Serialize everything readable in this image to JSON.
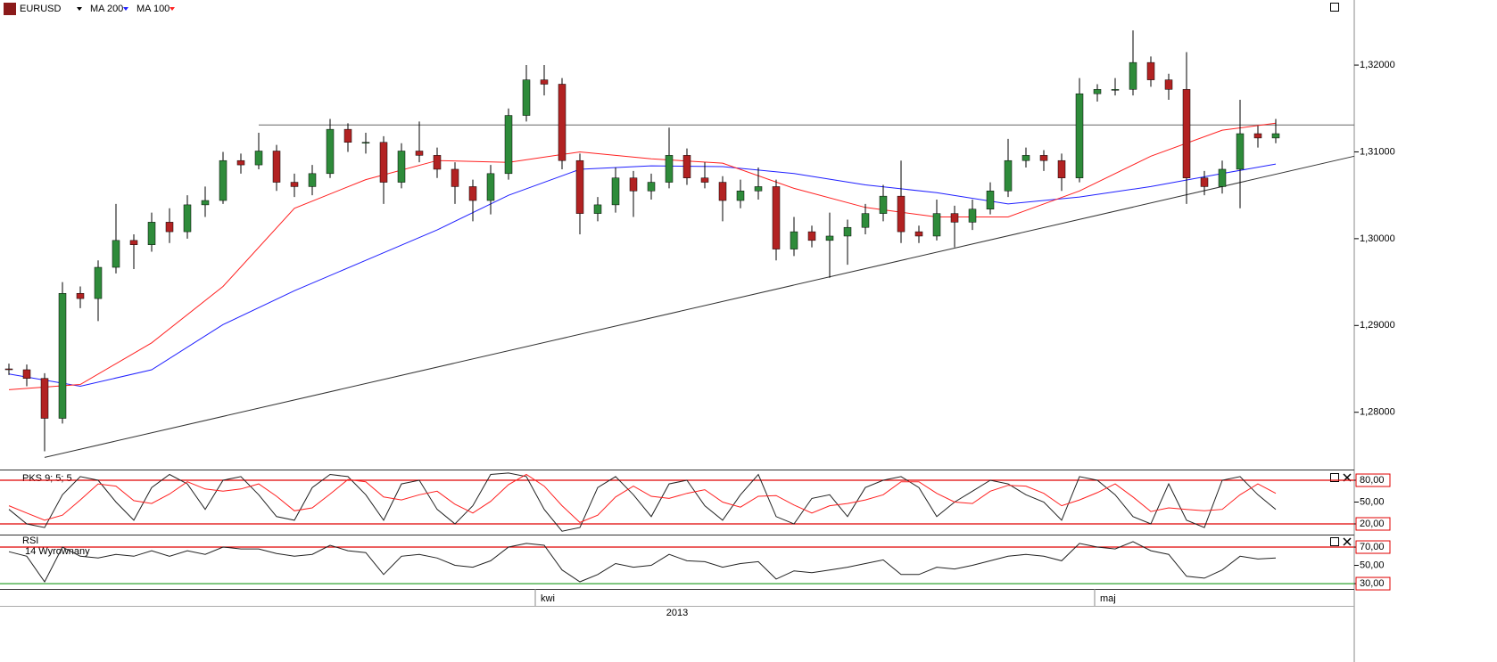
{
  "chart_data": [
    {
      "type": "candlestick",
      "symbol": "EURUSD",
      "up_color": "#2e8b3a",
      "down_color": "#b22222",
      "wick_color": "#000000",
      "xlim": [
        -0.5,
        75.4
      ],
      "xticks": [
        {
          "value": 29.5,
          "label": "kwi"
        },
        {
          "value": 60.85,
          "label": "maj"
        }
      ],
      "year_label": "2013",
      "ylim": [
        1.2734,
        1.3275
      ],
      "yticks": [
        {
          "value": 1.28,
          "label": "1,28000"
        },
        {
          "value": 1.29,
          "label": "1,29000"
        },
        {
          "value": 1.3,
          "label": "1,30000"
        },
        {
          "value": 1.31,
          "label": "1,31000"
        },
        {
          "value": 1.32,
          "label": "1,32000"
        }
      ],
      "candles": [
        [
          1.285,
          1.2856,
          1.2843,
          1.2849
        ],
        [
          1.2849,
          1.2855,
          1.283,
          1.2839
        ],
        [
          1.2839,
          1.2845,
          1.2755,
          1.2793
        ],
        [
          1.2793,
          1.295,
          1.2787,
          1.2937
        ],
        [
          1.2937,
          1.2945,
          1.292,
          1.2931
        ],
        [
          1.2931,
          1.2975,
          1.2905,
          1.2967
        ],
        [
          1.2967,
          1.304,
          1.296,
          1.2998
        ],
        [
          1.2998,
          1.3005,
          1.2965,
          1.2993
        ],
        [
          1.2993,
          1.303,
          1.2985,
          1.3019
        ],
        [
          1.3019,
          1.3035,
          1.2995,
          1.3008
        ],
        [
          1.3008,
          1.305,
          1.3,
          1.3039
        ],
        [
          1.3039,
          1.306,
          1.3025,
          1.3044
        ],
        [
          1.3044,
          1.31,
          1.304,
          1.309
        ],
        [
          1.309,
          1.3098,
          1.3075,
          1.3085
        ],
        [
          1.3085,
          1.3122,
          1.308,
          1.3101
        ],
        [
          1.3101,
          1.3108,
          1.3055,
          1.3065
        ],
        [
          1.3065,
          1.3075,
          1.3048,
          1.306
        ],
        [
          1.306,
          1.3085,
          1.305,
          1.3075
        ],
        [
          1.3075,
          1.3138,
          1.307,
          1.3126
        ],
        [
          1.3126,
          1.3133,
          1.31,
          1.3111
        ],
        [
          1.3111,
          1.3122,
          1.3098,
          1.3111
        ],
        [
          1.3111,
          1.3118,
          1.304,
          1.3065
        ],
        [
          1.3065,
          1.311,
          1.3058,
          1.3101
        ],
        [
          1.3101,
          1.3135,
          1.3088,
          1.3096
        ],
        [
          1.3096,
          1.3105,
          1.307,
          1.308
        ],
        [
          1.308,
          1.3088,
          1.304,
          1.306
        ],
        [
          1.306,
          1.3068,
          1.302,
          1.3044
        ],
        [
          1.3044,
          1.3085,
          1.3028,
          1.3075
        ],
        [
          1.3075,
          1.315,
          1.3068,
          1.3142
        ],
        [
          1.3142,
          1.32,
          1.3135,
          1.3183
        ],
        [
          1.3183,
          1.32,
          1.3165,
          1.3178
        ],
        [
          1.3178,
          1.3185,
          1.308,
          1.309
        ],
        [
          1.309,
          1.3098,
          1.3005,
          1.3029
        ],
        [
          1.3029,
          1.3048,
          1.302,
          1.3039
        ],
        [
          1.3039,
          1.3082,
          1.303,
          1.307
        ],
        [
          1.307,
          1.3078,
          1.3025,
          1.3055
        ],
        [
          1.3055,
          1.3075,
          1.3045,
          1.3065
        ],
        [
          1.3065,
          1.3128,
          1.3058,
          1.3096
        ],
        [
          1.3096,
          1.3104,
          1.3062,
          1.307
        ],
        [
          1.307,
          1.3088,
          1.3058,
          1.3065
        ],
        [
          1.3065,
          1.3072,
          1.302,
          1.3044
        ],
        [
          1.3044,
          1.3068,
          1.3035,
          1.3055
        ],
        [
          1.3055,
          1.3082,
          1.3045,
          1.306
        ],
        [
          1.306,
          1.3068,
          1.2975,
          1.2988
        ],
        [
          1.2988,
          1.3025,
          1.298,
          1.3008
        ],
        [
          1.3008,
          1.3015,
          1.299,
          1.2998
        ],
        [
          1.2998,
          1.303,
          1.2955,
          1.3003
        ],
        [
          1.3003,
          1.3022,
          1.297,
          1.3013
        ],
        [
          1.3013,
          1.304,
          1.3005,
          1.3029
        ],
        [
          1.3029,
          1.3062,
          1.302,
          1.3049
        ],
        [
          1.3049,
          1.309,
          1.2995,
          1.3008
        ],
        [
          1.3008,
          1.3015,
          1.2995,
          1.3003
        ],
        [
          1.3003,
          1.3045,
          1.2998,
          1.3029
        ],
        [
          1.3029,
          1.3038,
          1.299,
          1.3019
        ],
        [
          1.3019,
          1.3045,
          1.301,
          1.3034
        ],
        [
          1.3034,
          1.3065,
          1.3028,
          1.3055
        ],
        [
          1.3055,
          1.3115,
          1.3048,
          1.309
        ],
        [
          1.309,
          1.3105,
          1.3082,
          1.3096
        ],
        [
          1.3096,
          1.3102,
          1.3078,
          1.309
        ],
        [
          1.309,
          1.3098,
          1.3055,
          1.307
        ],
        [
          1.307,
          1.3185,
          1.3065,
          1.3167
        ],
        [
          1.3167,
          1.3178,
          1.3158,
          1.3172
        ],
        [
          1.3172,
          1.3185,
          1.3165,
          1.3172
        ],
        [
          1.3172,
          1.324,
          1.3165,
          1.3203
        ],
        [
          1.3203,
          1.321,
          1.3175,
          1.3183
        ],
        [
          1.3183,
          1.319,
          1.316,
          1.3172
        ],
        [
          1.3172,
          1.3215,
          1.304,
          1.307
        ],
        [
          1.307,
          1.3078,
          1.305,
          1.306
        ],
        [
          1.306,
          1.309,
          1.3052,
          1.308
        ],
        [
          1.308,
          1.316,
          1.3035,
          1.3121
        ],
        [
          1.3121,
          1.313,
          1.3105,
          1.3116
        ],
        [
          1.3116,
          1.3138,
          1.311,
          1.3121
        ]
      ],
      "series": [
        {
          "name": "MA 200",
          "color": "#1f1fff",
          "x": [
            0,
            4,
            8,
            12,
            16,
            20,
            24,
            28,
            32,
            36,
            40,
            44,
            48,
            52,
            56,
            60,
            64,
            68,
            71
          ],
          "values": [
            1.2844,
            1.283,
            1.2849,
            1.2901,
            1.294,
            1.2975,
            1.301,
            1.305,
            1.308,
            1.3084,
            1.3083,
            1.3075,
            1.3062,
            1.3053,
            1.304,
            1.3048,
            1.306,
            1.3075,
            1.3086
          ]
        },
        {
          "name": "MA 100",
          "color": "#ff2020",
          "x": [
            0,
            4,
            8,
            12,
            16,
            20,
            24,
            28,
            32,
            36,
            40,
            44,
            48,
            52,
            56,
            60,
            64,
            68,
            71
          ],
          "values": [
            1.2826,
            1.2832,
            1.288,
            1.2945,
            1.3035,
            1.3068,
            1.309,
            1.3088,
            1.31,
            1.3092,
            1.3087,
            1.3058,
            1.3036,
            1.3025,
            1.3025,
            1.3055,
            1.3095,
            1.3125,
            1.3133
          ]
        }
      ],
      "trendlines": [
        {
          "color": "#666666",
          "x": [
            14,
            75.4
          ],
          "values": [
            1.3131,
            1.3131
          ]
        },
        {
          "color": "#333333",
          "x": [
            2,
            75.4
          ],
          "values": [
            1.2748,
            1.3095
          ]
        }
      ]
    },
    {
      "type": "line",
      "title": "PKS 9; 5; 5",
      "ylim": [
        5.3,
        93.5
      ],
      "yticks": [
        {
          "value": 20,
          "label": "20,00",
          "color": "#e00000"
        },
        {
          "value": 50,
          "label": "50,00"
        },
        {
          "value": 80,
          "label": "80,00",
          "color": "#e00000"
        }
      ],
      "series": [
        {
          "color": "#222222",
          "values": [
            40,
            20,
            15,
            60,
            85,
            80,
            50,
            25,
            70,
            88,
            75,
            40,
            80,
            85,
            60,
            30,
            25,
            70,
            88,
            85,
            60,
            25,
            75,
            80,
            40,
            20,
            45,
            88,
            90,
            85,
            40,
            10,
            15,
            70,
            85,
            60,
            30,
            75,
            80,
            45,
            25,
            60,
            88,
            30,
            20,
            55,
            60,
            30,
            70,
            80,
            85,
            70,
            30,
            50,
            65,
            80,
            75,
            60,
            50,
            25,
            85,
            80,
            60,
            30,
            20,
            75,
            25,
            15,
            80,
            85,
            60,
            40
          ]
        },
        {
          "color": "#ff2020",
          "values": [
            45,
            35,
            25,
            32,
            53,
            75,
            72,
            52,
            48,
            61,
            78,
            68,
            65,
            68,
            75,
            58,
            38,
            42,
            61,
            81,
            78,
            57,
            53,
            60,
            65,
            47,
            35,
            51,
            74,
            88,
            72,
            45,
            22,
            32,
            57,
            72,
            58,
            55,
            62,
            67,
            50,
            43,
            58,
            59,
            46,
            35,
            45,
            48,
            53,
            60,
            78,
            78,
            62,
            50,
            48,
            65,
            73,
            72,
            62,
            45,
            53,
            63,
            75,
            57,
            37,
            42,
            40,
            38,
            40,
            60,
            75,
            62
          ]
        }
      ]
    },
    {
      "type": "line",
      "title": "RSI",
      "subtitle": "14 Wyrownany",
      "ylim": [
        24.2,
        82.7
      ],
      "yticks": [
        {
          "value": 30,
          "label": "30,00",
          "color": "#1a9a1a"
        },
        {
          "value": 50,
          "label": "50,00"
        },
        {
          "value": 70,
          "label": "70,00",
          "color": "#e00000"
        }
      ],
      "series": [
        {
          "color": "#222222",
          "values": [
            65,
            60,
            32,
            70,
            60,
            58,
            62,
            60,
            66,
            60,
            66,
            62,
            70,
            68,
            68,
            63,
            60,
            62,
            72,
            66,
            64,
            40,
            60,
            62,
            58,
            50,
            48,
            55,
            70,
            74,
            72,
            45,
            32,
            40,
            52,
            48,
            50,
            62,
            55,
            54,
            48,
            52,
            54,
            35,
            44,
            42,
            45,
            48,
            52,
            56,
            40,
            40,
            48,
            46,
            50,
            55,
            60,
            62,
            60,
            55,
            74,
            70,
            68,
            76,
            66,
            62,
            38,
            36,
            45,
            60,
            57,
            58
          ]
        }
      ]
    }
  ]
}
